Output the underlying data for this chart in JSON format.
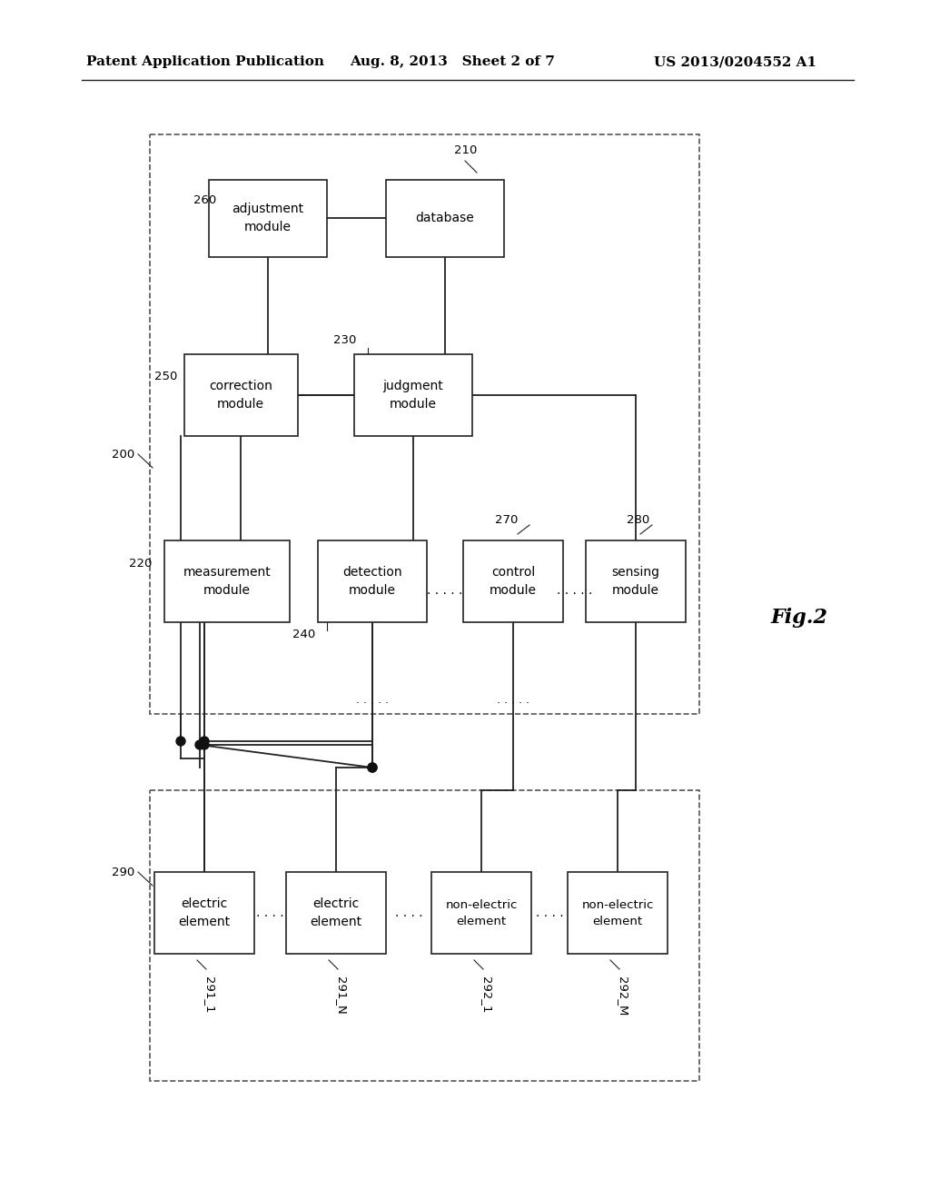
{
  "header_left": "Patent Application Publication",
  "header_mid": "Aug. 8, 2013   Sheet 2 of 7",
  "header_right": "US 2013/0204552 A1",
  "fig_label": "Fig.2",
  "bg_color": "#ffffff",
  "line_color": "#222222",
  "box_edge": "#222222"
}
